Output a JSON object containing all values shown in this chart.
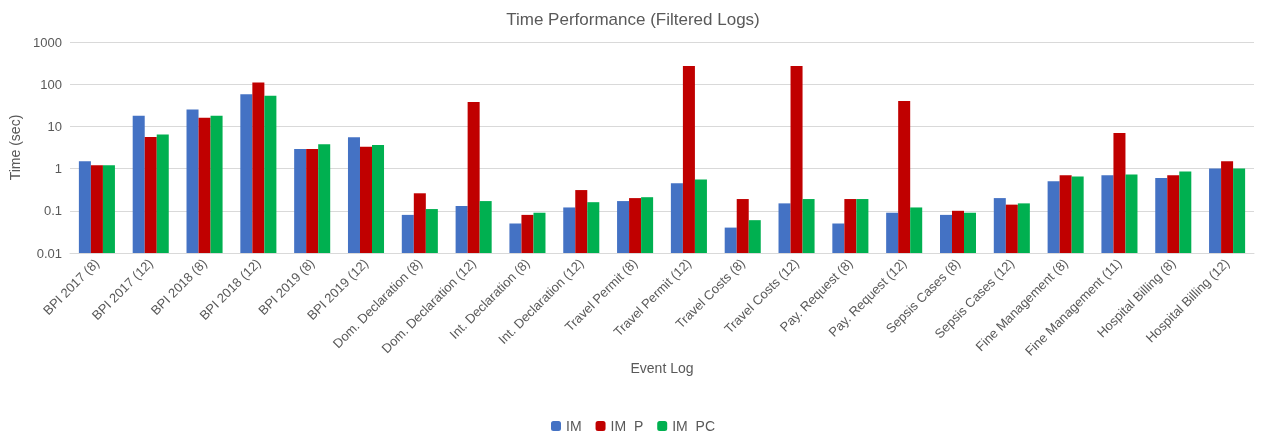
{
  "chart_data": {
    "type": "bar",
    "title": "Time Performance (Filtered Logs)",
    "xlabel": "Event Log",
    "ylabel": "Time (sec)",
    "categories": [
      "BPI 2017 (8)",
      "BPI 2017 (12)",
      "BPI 2018 (8)",
      "BPI 2018 (12)",
      "BPI 2019 (8)",
      "BPI 2019 (12)",
      "Dom. Declaration (8)",
      "Dom. Declaration (12)",
      "Int. Declaration (8)",
      "Int. Declaration (12)",
      "Travel Permit (8)",
      "Travel Permit (12)",
      "Travel Costs (8)",
      "Travel Costs (12)",
      "Pay. Request (8)",
      "Pay. Request (12)",
      "Sepsis Cases (8)",
      "Sepsis Cases (12)",
      "Fine Management (8)",
      "Fine Management (11)",
      "Hospital Billing (8)",
      "Hospital Billing (12)"
    ],
    "series": [
      {
        "name": "IM",
        "color": "#4472c4",
        "values": [
          1.5,
          18,
          25,
          58,
          2.9,
          5.5,
          0.08,
          0.13,
          0.05,
          0.12,
          0.17,
          0.45,
          0.04,
          0.15,
          0.05,
          0.09,
          0.08,
          0.2,
          0.5,
          0.7,
          0.6,
          1.0
        ]
      },
      {
        "name": "IM  P",
        "color": "#c00000",
        "values": [
          1.2,
          5.6,
          16,
          110,
          2.9,
          3.3,
          0.26,
          38,
          0.08,
          0.31,
          0.2,
          270,
          0.19,
          270,
          0.19,
          40,
          0.1,
          0.14,
          0.7,
          7,
          0.7,
          1.5
        ]
      },
      {
        "name": "IM  PC",
        "color": "#00b050",
        "values": [
          1.2,
          6.4,
          18,
          53,
          3.8,
          3.6,
          0.11,
          0.17,
          0.09,
          0.16,
          0.21,
          0.55,
          0.06,
          0.19,
          0.19,
          0.12,
          0.09,
          0.15,
          0.65,
          0.72,
          0.85,
          1.0
        ]
      }
    ],
    "log": "y",
    "ylim": [
      0.01,
      1000
    ],
    "yticks": [
      0.01,
      0.1,
      1,
      10,
      100,
      1000
    ],
    "grid": "y",
    "legend": "bottom"
  }
}
